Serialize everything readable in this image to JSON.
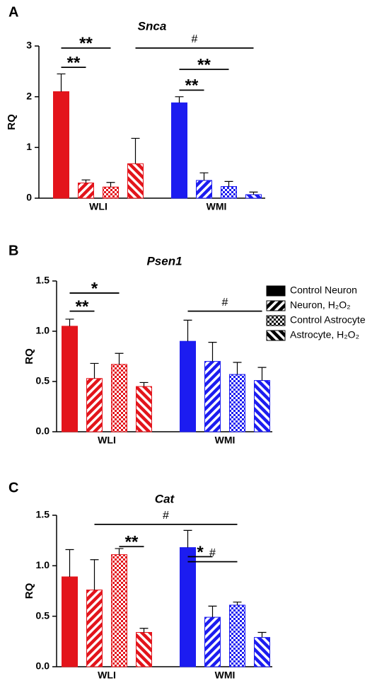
{
  "chart_data": [
    {
      "type": "bar",
      "panel": "A",
      "title": "Snca",
      "y_label": "RQ",
      "categories": [
        "WLI",
        "WMI"
      ],
      "category_colors": [
        "#e3141b",
        "#1c1cf0"
      ],
      "ylim": [
        0,
        3
      ],
      "yticks": [
        0,
        1,
        2,
        3
      ],
      "series": [
        {
          "pattern": "solid",
          "values": [
            2.1,
            1.88
          ],
          "errors": [
            0.35,
            0.12
          ]
        },
        {
          "pattern": "stripes",
          "values": [
            0.3,
            0.35
          ],
          "errors": [
            0.06,
            0.15
          ]
        },
        {
          "pattern": "checker",
          "values": [
            0.22,
            0.23
          ],
          "errors": [
            0.09,
            0.1
          ]
        },
        {
          "pattern": "back-stripes",
          "values": [
            0.68,
            0.07
          ],
          "errors": [
            0.5,
            0.05
          ]
        }
      ],
      "annotations": [
        {
          "label": "**",
          "from": [
            0,
            0
          ],
          "to": [
            0,
            1
          ],
          "y": 2.58
        },
        {
          "label": "**",
          "from": [
            0,
            0
          ],
          "to": [
            0,
            2
          ],
          "y": 2.96
        },
        {
          "label": "#",
          "from": [
            0,
            3
          ],
          "to": [
            1,
            3
          ],
          "y": 2.96
        },
        {
          "label": "**",
          "from": [
            1,
            0
          ],
          "to": [
            1,
            1
          ],
          "y": 2.13
        },
        {
          "label": "**",
          "from": [
            1,
            0
          ],
          "to": [
            1,
            2
          ],
          "y": 2.54
        }
      ]
    },
    {
      "type": "bar",
      "panel": "B",
      "title": "Psen1",
      "y_label": "RQ",
      "categories": [
        "WLI",
        "WMI"
      ],
      "category_colors": [
        "#e3141b",
        "#1c1cf0"
      ],
      "ylim": [
        0,
        1.5
      ],
      "yticks": [
        {
          "value": 0,
          "label": "0.0"
        },
        {
          "value": 0.5,
          "label": "0.5"
        },
        {
          "value": 1,
          "label": "1.0"
        },
        {
          "value": 1.5,
          "label": "1.5"
        }
      ],
      "legend": true,
      "legend_color": "#000000",
      "series": [
        {
          "name": "Control Neuron",
          "pattern": "solid",
          "values": [
            1.05,
            0.9
          ],
          "errors": [
            0.07,
            0.21
          ]
        },
        {
          "name": "Neuron, H₂O₂",
          "pattern": "stripes",
          "values": [
            0.53,
            0.7
          ],
          "errors": [
            0.15,
            0.19
          ]
        },
        {
          "name": "Control Astrocyte",
          "pattern": "checker",
          "values": [
            0.67,
            0.57
          ],
          "errors": [
            0.11,
            0.12
          ]
        },
        {
          "name": "Astrocyte, H₂O₂",
          "pattern": "back-stripes",
          "values": [
            0.45,
            0.51
          ],
          "errors": [
            0.04,
            0.13
          ]
        }
      ],
      "annotations": [
        {
          "label": "**",
          "from": [
            0,
            0
          ],
          "to": [
            0,
            1
          ],
          "y": 1.2
        },
        {
          "label": "*",
          "from": [
            0,
            0
          ],
          "to": [
            0,
            2
          ],
          "y": 1.38
        },
        {
          "label": "#",
          "from": [
            1,
            0
          ],
          "to": [
            1,
            3
          ],
          "y": 1.2
        }
      ]
    },
    {
      "type": "bar",
      "panel": "C",
      "title": "Cat",
      "y_label": "RQ",
      "categories": [
        "WLI",
        "WMI"
      ],
      "category_colors": [
        "#e3141b",
        "#1c1cf0"
      ],
      "ylim": [
        0,
        1.5
      ],
      "yticks": [
        {
          "value": 0,
          "label": "0.0"
        },
        {
          "value": 0.5,
          "label": "0.5"
        },
        {
          "value": 1,
          "label": "1.0"
        },
        {
          "value": 1.5,
          "label": "1.5"
        }
      ],
      "series": [
        {
          "pattern": "solid",
          "values": [
            0.89,
            1.18
          ],
          "errors": [
            0.27,
            0.17
          ]
        },
        {
          "pattern": "stripes",
          "values": [
            0.76,
            0.49
          ],
          "errors": [
            0.3,
            0.11
          ]
        },
        {
          "pattern": "checker",
          "values": [
            1.11,
            0.61
          ],
          "errors": [
            0.06,
            0.03
          ]
        },
        {
          "pattern": "back-stripes",
          "values": [
            0.34,
            0.29
          ],
          "errors": [
            0.04,
            0.05
          ]
        }
      ],
      "annotations": [
        {
          "label": "**",
          "from": [
            0,
            2
          ],
          "to": [
            0,
            3
          ],
          "y": 1.19
        },
        {
          "label": "#",
          "from": [
            0,
            1
          ],
          "to": [
            1,
            2
          ],
          "y": 1.41
        },
        {
          "label": "*",
          "from": [
            1,
            0
          ],
          "to": [
            1,
            1
          ],
          "y": 1.09
        },
        {
          "label": "#",
          "from": [
            1,
            0
          ],
          "to": [
            1,
            2
          ],
          "y": 1.04
        }
      ]
    }
  ]
}
